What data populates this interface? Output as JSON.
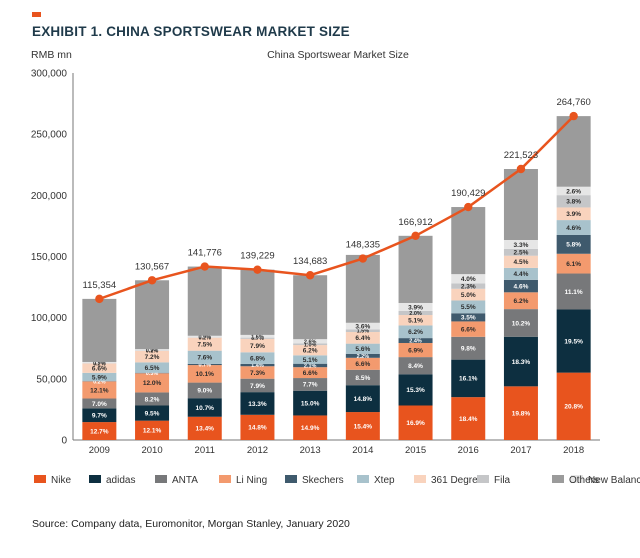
{
  "exhibit_title": "EXHIBIT 1. CHINA SPORTSWEAR MARKET SIZE",
  "source": "Source: Company data, Euromonitor, Morgan Stanley, January 2020",
  "colors": {
    "accent": "#e8541e",
    "Nike": "#e8541e",
    "adidas": "#0d2f40",
    "ANTA": "#77787a",
    "Li Ning": "#f39a6e",
    "Skechers": "#3f5a6d",
    "Xtep": "#a8c2cc",
    "361 Degrees": "#f9d3bd",
    "Fila": "#c5c6c8",
    "New Balance": "#e6e6e6",
    "Others": "#9b9b9b",
    "total_line": "#e8541e"
  },
  "chart_data": {
    "type": "bar",
    "stacked": true,
    "title": "China Sportswear Market Size",
    "ylabel": "RMB mn",
    "xlabel": "",
    "ylim": [
      0,
      300000
    ],
    "yticks": [
      0,
      50000,
      100000,
      150000,
      200000,
      250000,
      300000
    ],
    "ytick_labels": [
      "0",
      "50,000",
      "100,000",
      "150,000",
      "200,000",
      "250,000",
      "300,000"
    ],
    "grid": false,
    "legend_position": "bottom",
    "categories": [
      "2009",
      "2010",
      "2011",
      "2012",
      "2013",
      "2014",
      "2015",
      "2016",
      "2017",
      "2018"
    ],
    "totals": [
      115354,
      130567,
      141776,
      139229,
      134683,
      148335,
      166912,
      190429,
      221523,
      264760
    ],
    "total_labels": [
      "115,354",
      "130,567",
      "141,776",
      "139,229",
      "134,683",
      "148,335",
      "166,912",
      "190,429",
      "221,523",
      "264,760"
    ],
    "series": [
      {
        "name": "Nike",
        "shares": [
          12.7,
          12.1,
          13.4,
          14.8,
          14.9,
          15.4,
          16.9,
          18.4,
          19.8,
          20.8
        ],
        "labels": [
          "12.7%",
          "12.1%",
          "13.4%",
          "14.8%",
          "14.9%",
          "15.4%",
          "16.9%",
          "18.4%",
          "19.8%",
          "20.8%"
        ]
      },
      {
        "name": "adidas",
        "shares": [
          9.7,
          9.5,
          10.7,
          13.3,
          15.0,
          14.8,
          15.3,
          16.1,
          18.3,
          19.5
        ],
        "labels": [
          "9.7%",
          "9.5%",
          "10.7%",
          "13.3%",
          "15.0%",
          "14.8%",
          "15.3%",
          "16.1%",
          "18.3%",
          "19.5%"
        ]
      },
      {
        "name": "ANTA",
        "shares": [
          7.0,
          8.2,
          9.0,
          7.9,
          7.7,
          8.5,
          8.4,
          9.8,
          10.2,
          11.1
        ],
        "labels": [
          "7.0%",
          "8.2%",
          "9.0%",
          "7.9%",
          "7.7%",
          "8.5%",
          "8.4%",
          "9.8%",
          "10.2%",
          "11.1%"
        ]
      },
      {
        "name": "Li Ning",
        "shares": [
          12.1,
          12.0,
          10.1,
          7.3,
          6.6,
          6.6,
          6.9,
          6.6,
          6.2,
          6.1
        ],
        "labels": [
          "12.1%",
          "12.0%",
          "10.1%",
          "7.3%",
          "6.6%",
          "6.6%",
          "6.9%",
          "6.6%",
          "6.2%",
          "6.1%"
        ]
      },
      {
        "name": "Skechers",
        "shares": [
          0.2,
          0.3,
          0.7,
          1.4,
          2.1,
          2.2,
          2.4,
          3.5,
          4.6,
          5.8
        ],
        "labels": [
          "0.2%",
          "0.3%",
          "0.7%",
          "1.4%",
          "2.1%",
          "2.2%",
          "2.4%",
          "3.5%",
          "4.6%",
          "5.8%"
        ]
      },
      {
        "name": "Xtep",
        "shares": [
          5.9,
          6.5,
          7.6,
          6.8,
          5.1,
          5.6,
          6.2,
          5.5,
          4.4,
          4.6
        ],
        "labels": [
          "5.9%",
          "6.5%",
          "7.6%",
          "6.8%",
          "5.1%",
          "5.6%",
          "6.2%",
          "5.5%",
          "4.4%",
          "4.6%"
        ]
      },
      {
        "name": "361 Degrees",
        "shares": [
          6.6,
          7.2,
          7.5,
          7.9,
          6.2,
          6.4,
          5.1,
          5.0,
          4.5,
          3.9
        ],
        "labels": [
          "6.6%",
          "7.2%",
          "7.5%",
          "7.9%",
          "6.2%",
          "6.4%",
          "5.1%",
          "5.0%",
          "4.5%",
          "3.9%"
        ]
      },
      {
        "name": "Fila",
        "shares": [
          0.2,
          0.2,
          0.2,
          0.7,
          1.0,
          1.5,
          2.0,
          2.3,
          2.5,
          3.8
        ],
        "labels": [
          "0.2%",
          "0.2%",
          "0.2%",
          "0.7%",
          "1.0%",
          "1.5%",
          "2.0%",
          "2.3%",
          "2.5%",
          "3.8%"
        ]
      },
      {
        "name": "New Balance",
        "shares": [
          0.9,
          0.9,
          0.9,
          1.6,
          2.6,
          3.6,
          3.9,
          4.0,
          3.3,
          2.6
        ],
        "labels": [
          "0.9%",
          "0.9%",
          "0.9%",
          "1.6%",
          "2.6%",
          "3.6%",
          "3.9%",
          "4.0%",
          "3.3%",
          "2.6%"
        ]
      },
      {
        "name": "Others",
        "shares": [
          44.7,
          43.1,
          39.9,
          38.3,
          38.8,
          37.4,
          32.9,
          28.8,
          26.2,
          21.8
        ],
        "labels": [
          "",
          "",
          "",
          "",
          "",
          "",
          "",
          "",
          "",
          ""
        ]
      }
    ]
  }
}
